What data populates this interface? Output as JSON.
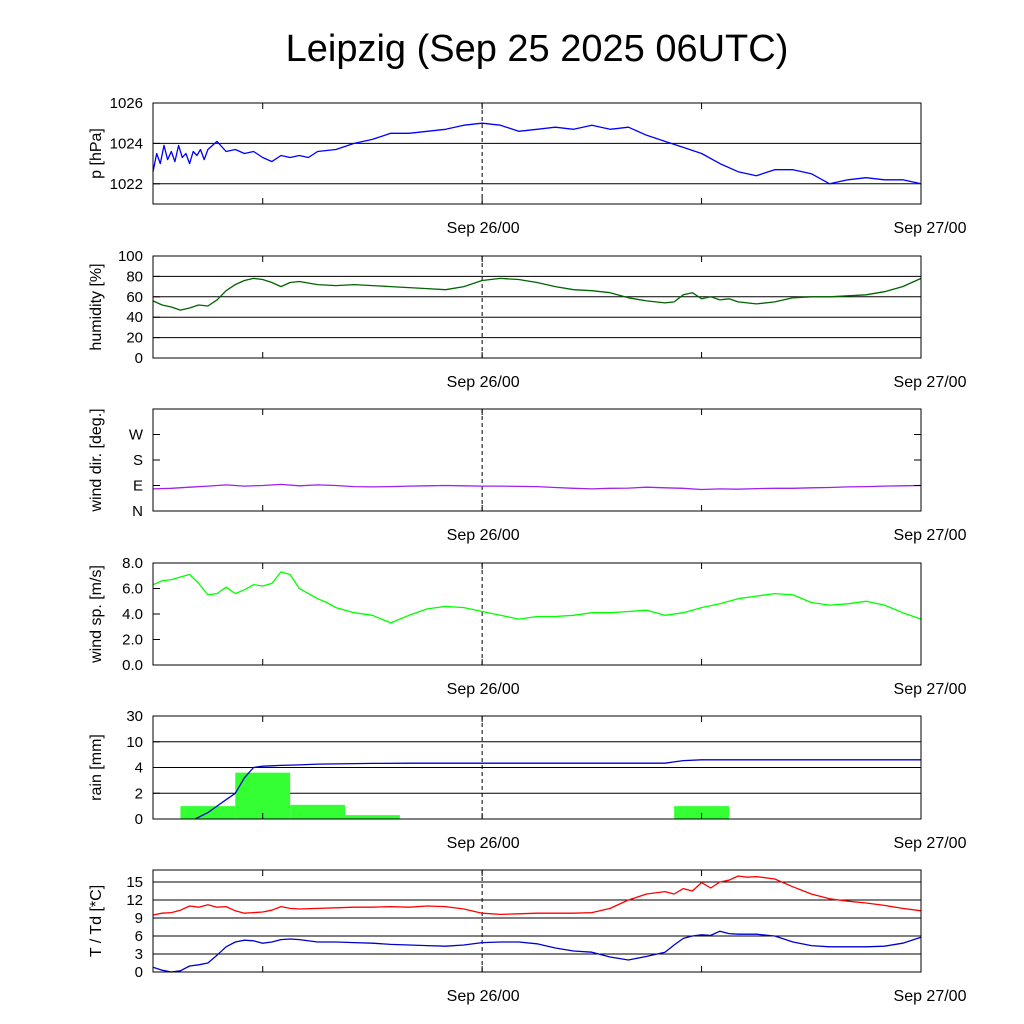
{
  "title": "Leipzig (Sep 25 2025 06UTC)",
  "x_axis": {
    "unit": "hours since Sep 25 06UTC",
    "range": [
      0,
      42
    ],
    "labels": [
      {
        "x": 18,
        "text": "Sep 26/00"
      },
      {
        "x": 42,
        "text": "Sep 27/00"
      }
    ],
    "minor_ticks": [
      6,
      18,
      30,
      42
    ],
    "dashed_at": 18
  },
  "colors": {
    "pressure": "#0000ff",
    "humidity": "#006400",
    "wind_dir": "#a020f0",
    "wind_speed": "#00ff00",
    "rain_bar": "#33ff33",
    "rain_cum": "#0000cc",
    "temperature": "#ff0000",
    "dewpoint": "#0000cc"
  },
  "chart_data": [
    {
      "id": "pressure",
      "type": "line",
      "ylabel": "p [hPa]",
      "ylim": [
        1021,
        1026
      ],
      "yticks": [
        {
          "v": 1026,
          "label": "1026"
        },
        {
          "v": 1024,
          "label": "1024"
        },
        {
          "v": 1022,
          "label": "1022"
        }
      ],
      "grid": [
        1026,
        1024,
        1022
      ],
      "series": [
        {
          "name": "pressure",
          "color": "#0000ff",
          "x": [
            0,
            0.2,
            0.4,
            0.6,
            0.8,
            1.0,
            1.2,
            1.4,
            1.6,
            1.8,
            2.0,
            2.2,
            2.4,
            2.6,
            2.8,
            3.0,
            3.5,
            4,
            4.5,
            5,
            5.5,
            6,
            6.5,
            7,
            7.5,
            8,
            8.5,
            9,
            10,
            11,
            12,
            13,
            14,
            15,
            16,
            17,
            18,
            19,
            20,
            21,
            22,
            23,
            24,
            25,
            26,
            27,
            28,
            29,
            30,
            31,
            32,
            33,
            34,
            35,
            36,
            37,
            38,
            39,
            40,
            41,
            42
          ],
          "values": [
            1022.6,
            1023.5,
            1023.0,
            1023.9,
            1023.2,
            1023.6,
            1023.1,
            1023.9,
            1023.3,
            1023.5,
            1023.0,
            1023.6,
            1023.4,
            1023.7,
            1023.2,
            1023.7,
            1024.1,
            1023.6,
            1023.7,
            1023.5,
            1023.6,
            1023.3,
            1023.1,
            1023.4,
            1023.3,
            1023.4,
            1023.3,
            1023.6,
            1023.7,
            1024.0,
            1024.2,
            1024.5,
            1024.5,
            1024.6,
            1024.7,
            1024.9,
            1025.0,
            1024.9,
            1024.6,
            1024.7,
            1024.8,
            1024.7,
            1024.9,
            1024.7,
            1024.8,
            1024.4,
            1024.1,
            1023.8,
            1023.5,
            1023.0,
            1022.6,
            1022.4,
            1022.7,
            1022.7,
            1022.5,
            1022.0,
            1022.2,
            1022.3,
            1022.2,
            1022.2,
            1022.0
          ]
        }
      ]
    },
    {
      "id": "humidity",
      "type": "line",
      "ylabel": "humidity [%]",
      "ylim": [
        0,
        100
      ],
      "yticks": [
        {
          "v": 100,
          "label": "100"
        },
        {
          "v": 80,
          "label": "80"
        },
        {
          "v": 60,
          "label": "60"
        },
        {
          "v": 40,
          "label": "40"
        },
        {
          "v": 20,
          "label": "20"
        },
        {
          "v": 0,
          "label": "0"
        }
      ],
      "grid": [
        80,
        60,
        40,
        20
      ],
      "series": [
        {
          "name": "humidity",
          "color": "#006400",
          "x": [
            0,
            0.5,
            1,
            1.5,
            2,
            2.5,
            3,
            3.5,
            4,
            4.5,
            5,
            5.5,
            6,
            6.5,
            7,
            7.5,
            8,
            9,
            10,
            11,
            12,
            13,
            14,
            15,
            16,
            17,
            18,
            19,
            20,
            21,
            22,
            23,
            24,
            25,
            26,
            27,
            28,
            28.5,
            29,
            29.5,
            30,
            30.5,
            31,
            31.5,
            32,
            33,
            34,
            35,
            36,
            37,
            38,
            39,
            40,
            41,
            42
          ],
          "values": [
            56,
            52,
            50,
            47,
            49,
            52,
            51,
            57,
            66,
            72,
            76,
            78,
            77,
            74,
            70,
            74,
            75,
            72,
            71,
            72,
            71,
            70,
            69,
            68,
            67,
            70,
            76,
            78,
            77,
            74,
            70,
            67,
            66,
            64,
            59,
            56,
            54,
            55,
            62,
            64,
            58,
            60,
            57,
            58,
            55,
            53,
            55,
            59,
            60,
            60,
            61,
            62,
            65,
            70,
            78
          ]
        }
      ]
    },
    {
      "id": "wind_dir",
      "type": "line",
      "ylabel": "wind dir. [deg.]",
      "ylim": [
        0,
        360
      ],
      "yticks": [
        {
          "v": 270,
          "label": "W"
        },
        {
          "v": 180,
          "label": "S"
        },
        {
          "v": 90,
          "label": "E"
        },
        {
          "v": 0,
          "label": "N"
        }
      ],
      "grid": [],
      "right_ticks": [
        90,
        180,
        270
      ],
      "series": [
        {
          "name": "wind direction",
          "color": "#a020f0",
          "x": [
            0,
            1,
            2,
            3,
            4,
            5,
            6,
            7,
            8,
            9,
            10,
            11,
            12,
            13,
            14,
            15,
            16,
            17,
            18,
            19,
            20,
            21,
            22,
            23,
            24,
            25,
            26,
            27,
            28,
            29,
            30,
            31,
            32,
            33,
            34,
            35,
            36,
            37,
            38,
            39,
            40,
            41,
            42
          ],
          "values": [
            78,
            80,
            84,
            88,
            92,
            88,
            90,
            94,
            89,
            92,
            90,
            86,
            85,
            86,
            88,
            89,
            90,
            89,
            88,
            88,
            87,
            86,
            83,
            80,
            78,
            80,
            81,
            84,
            82,
            80,
            76,
            78,
            77,
            79,
            80,
            80,
            82,
            83,
            85,
            86,
            88,
            89,
            90
          ]
        }
      ]
    },
    {
      "id": "wind_speed",
      "type": "line",
      "ylabel": "wind sp. [m/s]",
      "ylim": [
        0,
        8
      ],
      "yticks": [
        {
          "v": 8,
          "label": "8.0"
        },
        {
          "v": 6,
          "label": "6.0"
        },
        {
          "v": 4,
          "label": "4.0"
        },
        {
          "v": 2,
          "label": "2.0"
        },
        {
          "v": 0,
          "label": "0.0"
        }
      ],
      "grid": [],
      "series": [
        {
          "name": "wind speed",
          "color": "#00ff00",
          "x": [
            0,
            0.5,
            1,
            1.5,
            2,
            2.5,
            3,
            3.5,
            4,
            4.5,
            5,
            5.5,
            6,
            6.5,
            7,
            7.5,
            8,
            8.5,
            9,
            9.5,
            10,
            11,
            12,
            13,
            14,
            15,
            16,
            17,
            18,
            19,
            20,
            21,
            22,
            23,
            24,
            25,
            26,
            27,
            28,
            29,
            30,
            31,
            32,
            33,
            34,
            35,
            36,
            37,
            38,
            39,
            40,
            41,
            42
          ],
          "values": [
            6.3,
            6.6,
            6.7,
            6.9,
            7.1,
            6.4,
            5.5,
            5.6,
            6.1,
            5.6,
            5.9,
            6.3,
            6.2,
            6.4,
            7.3,
            7.1,
            6.0,
            5.6,
            5.2,
            4.9,
            4.5,
            4.1,
            3.9,
            3.3,
            3.9,
            4.4,
            4.6,
            4.5,
            4.2,
            3.9,
            3.6,
            3.8,
            3.8,
            3.9,
            4.1,
            4.1,
            4.2,
            4.3,
            3.9,
            4.1,
            4.5,
            4.8,
            5.2,
            5.4,
            5.6,
            5.5,
            4.9,
            4.7,
            4.8,
            5.0,
            4.7,
            4.1,
            3.6
          ]
        }
      ]
    },
    {
      "id": "rain",
      "type": "bar",
      "ylabel": "rain [mm]",
      "ylim": [
        0,
        30
      ],
      "yscale": "piecewise",
      "yticks": [
        {
          "v": 30,
          "label": "30"
        },
        {
          "v": 10,
          "label": "10"
        },
        {
          "v": 4,
          "label": "4"
        },
        {
          "v": 2,
          "label": "2"
        },
        {
          "v": 0,
          "label": "0"
        }
      ],
      "grid": [
        30,
        10,
        4,
        2
      ],
      "bars": [
        {
          "start": 1.5,
          "end": 4.5,
          "value": 1.0
        },
        {
          "start": 4.5,
          "end": 7.5,
          "value": 3.6
        },
        {
          "start": 7.5,
          "end": 10.5,
          "value": 1.1
        },
        {
          "start": 10.5,
          "end": 13.5,
          "value": 0.3
        },
        {
          "start": 28.5,
          "end": 31.5,
          "value": 1.0
        }
      ],
      "bar_color": "#33ff33",
      "series": [
        {
          "name": "cumulative rain",
          "color": "#0000cc",
          "x": [
            2.3,
            3,
            3.5,
            4,
            4.5,
            5,
            5.5,
            6,
            6.5,
            7,
            8,
            9,
            10,
            11,
            12,
            14,
            18,
            22,
            26,
            28,
            28.5,
            29,
            30,
            35,
            42
          ],
          "values": [
            0.0,
            0.5,
            1.0,
            1.5,
            2.0,
            3.2,
            4.0,
            4.3,
            4.4,
            4.5,
            4.6,
            4.8,
            4.85,
            4.9,
            4.95,
            5.0,
            5.0,
            5.0,
            5.0,
            5.0,
            5.3,
            5.6,
            5.8,
            5.8,
            5.8
          ]
        }
      ]
    },
    {
      "id": "temperature",
      "type": "line",
      "ylabel": "T / Td [*C]",
      "ylim": [
        0,
        17
      ],
      "yticks": [
        {
          "v": 15,
          "label": "15"
        },
        {
          "v": 12,
          "label": "12"
        },
        {
          "v": 9,
          "label": "9"
        },
        {
          "v": 6,
          "label": "6"
        },
        {
          "v": 3,
          "label": "3"
        },
        {
          "v": 0,
          "label": "0"
        }
      ],
      "grid": [
        15,
        12,
        9,
        6,
        3
      ],
      "series": [
        {
          "name": "temperature",
          "color": "#ff0000",
          "x": [
            0,
            0.5,
            1,
            1.5,
            2,
            2.5,
            3,
            3.5,
            4,
            4.5,
            5,
            5.5,
            6,
            6.5,
            7,
            7.5,
            8,
            9,
            10,
            11,
            12,
            13,
            14,
            15,
            16,
            17,
            18,
            19,
            20,
            21,
            22,
            23,
            24,
            25,
            26,
            27,
            28,
            28.5,
            29,
            29.5,
            30,
            30.5,
            31,
            31.5,
            32,
            32.5,
            33,
            34,
            35,
            36,
            37,
            38,
            39,
            40,
            41,
            42
          ],
          "values": [
            9.5,
            9.8,
            9.9,
            10.3,
            11.0,
            10.8,
            11.2,
            10.8,
            10.9,
            10.2,
            9.8,
            9.9,
            10.0,
            10.3,
            10.9,
            10.6,
            10.5,
            10.6,
            10.7,
            10.8,
            10.8,
            10.9,
            10.8,
            11.0,
            10.9,
            10.5,
            9.8,
            9.6,
            9.7,
            9.8,
            9.8,
            9.8,
            9.9,
            10.6,
            12.0,
            13.0,
            13.4,
            13.0,
            13.9,
            13.5,
            14.9,
            14.0,
            15.0,
            15.3,
            16.0,
            15.8,
            15.9,
            15.5,
            14.2,
            13.0,
            12.2,
            11.8,
            11.5,
            11.1,
            10.6,
            10.2
          ]
        },
        {
          "name": "dew point",
          "color": "#0000cc",
          "x": [
            0,
            0.5,
            1,
            1.5,
            2,
            2.5,
            3,
            3.5,
            4,
            4.5,
            5,
            5.5,
            6,
            6.5,
            7,
            7.5,
            8,
            9,
            10,
            11,
            12,
            13,
            14,
            15,
            16,
            17,
            18,
            19,
            20,
            21,
            22,
            23,
            24,
            25,
            26,
            27,
            28,
            28.5,
            29,
            29.5,
            30,
            30.5,
            31,
            31.5,
            32,
            33,
            34,
            35,
            36,
            37,
            38,
            39,
            40,
            41,
            42
          ],
          "values": [
            0.8,
            0.3,
            0.0,
            0.2,
            1.0,
            1.2,
            1.5,
            2.8,
            4.2,
            5.0,
            5.3,
            5.2,
            4.8,
            5.0,
            5.4,
            5.5,
            5.4,
            5.0,
            5.0,
            4.9,
            4.8,
            4.6,
            4.5,
            4.4,
            4.3,
            4.5,
            4.9,
            5.0,
            5.0,
            4.7,
            4.0,
            3.5,
            3.3,
            2.5,
            2.0,
            2.6,
            3.3,
            4.5,
            5.6,
            6.0,
            6.2,
            6.1,
            6.8,
            6.4,
            6.3,
            6.3,
            6.0,
            5.0,
            4.4,
            4.2,
            4.2,
            4.2,
            4.3,
            4.8,
            5.8
          ]
        }
      ]
    }
  ]
}
